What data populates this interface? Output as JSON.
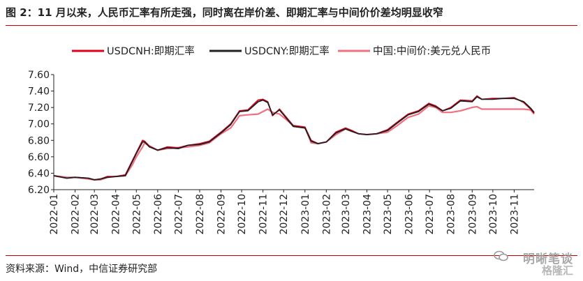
{
  "figure": {
    "title": "图 2：11 月以来，人民币汇率有所走强，同时离在岸价差、即期汇率与中间价价差均明显收窄",
    "source": "资料来源：Wind，中信证券研究部",
    "watermark_line1": "明晰笔谈",
    "watermark_line2": "格隆汇"
  },
  "colors": {
    "cnh": "#e0001b",
    "cny": "#231f20",
    "mid": "#f07080",
    "rule": "#c00000"
  },
  "chart_data": {
    "type": "line",
    "title": "",
    "xlabel": "",
    "ylabel": "",
    "ylim": [
      6.2,
      7.6
    ],
    "ytick_labels": [
      "6.20",
      "6.40",
      "6.60",
      "6.80",
      "7.00",
      "7.20",
      "7.40",
      "7.60"
    ],
    "x_range": [
      "2022-01-01",
      "2023-11-30"
    ],
    "xtick_labels": [
      "2022-01",
      "2022-02",
      "2022-03",
      "2022-04",
      "2022-05",
      "2022-06",
      "2022-07",
      "2022-08",
      "2022-09",
      "2022-10",
      "2022-11",
      "2022-12",
      "2023-01",
      "2023-02",
      "2023-03",
      "2023-04",
      "2023-05",
      "2023-06",
      "2023-07",
      "2023-08",
      "2023-09",
      "2023-10",
      "2023-11"
    ],
    "legend_position": "top",
    "grid": false,
    "series": [
      {
        "name": "USDCNH:即期汇率",
        "x": [
          "2022-01-01",
          "2022-01-20",
          "2022-02-01",
          "2022-02-20",
          "2022-03-01",
          "2022-03-10",
          "2022-03-20",
          "2022-04-01",
          "2022-04-15",
          "2022-04-25",
          "2022-05-01",
          "2022-05-10",
          "2022-05-13",
          "2022-05-20",
          "2022-06-01",
          "2022-06-15",
          "2022-07-01",
          "2022-07-15",
          "2022-08-01",
          "2022-08-15",
          "2022-09-01",
          "2022-09-15",
          "2022-09-28",
          "2022-10-10",
          "2022-10-25",
          "2022-11-01",
          "2022-11-08",
          "2022-11-15",
          "2022-11-25",
          "2022-12-01",
          "2022-12-15",
          "2023-01-01",
          "2023-01-10",
          "2023-01-20",
          "2023-02-01",
          "2023-02-15",
          "2023-03-01",
          "2023-03-10",
          "2023-03-20",
          "2023-04-01",
          "2023-04-15",
          "2023-05-01",
          "2023-05-15",
          "2023-05-31",
          "2023-06-15",
          "2023-06-30",
          "2023-07-10",
          "2023-07-20",
          "2023-08-01",
          "2023-08-15",
          "2023-09-01",
          "2023-09-08",
          "2023-09-15",
          "2023-10-01",
          "2023-10-15",
          "2023-11-01",
          "2023-11-15",
          "2023-11-25",
          "2023-11-30"
        ],
        "values": [
          6.37,
          6.34,
          6.35,
          6.34,
          6.32,
          6.33,
          6.36,
          6.36,
          6.38,
          6.55,
          6.65,
          6.8,
          6.79,
          6.73,
          6.68,
          6.72,
          6.71,
          6.74,
          6.76,
          6.79,
          6.9,
          7.0,
          7.16,
          7.17,
          7.29,
          7.3,
          7.27,
          7.1,
          7.18,
          7.12,
          6.98,
          6.96,
          6.8,
          6.76,
          6.78,
          6.9,
          6.95,
          6.92,
          6.88,
          6.87,
          6.88,
          6.93,
          7.02,
          7.12,
          7.16,
          7.25,
          7.22,
          7.16,
          7.2,
          7.29,
          7.28,
          7.34,
          7.3,
          7.31,
          7.31,
          7.32,
          7.26,
          7.18,
          7.13
        ]
      },
      {
        "name": "USDCNY:即期汇率",
        "x": [
          "2022-01-01",
          "2022-01-20",
          "2022-02-01",
          "2022-02-20",
          "2022-03-01",
          "2022-03-10",
          "2022-03-20",
          "2022-04-01",
          "2022-04-15",
          "2022-04-25",
          "2022-05-01",
          "2022-05-10",
          "2022-05-13",
          "2022-05-20",
          "2022-06-01",
          "2022-06-15",
          "2022-07-01",
          "2022-07-15",
          "2022-08-01",
          "2022-08-15",
          "2022-09-01",
          "2022-09-15",
          "2022-09-28",
          "2022-10-10",
          "2022-10-25",
          "2022-11-01",
          "2022-11-08",
          "2022-11-15",
          "2022-11-25",
          "2022-12-01",
          "2022-12-15",
          "2023-01-01",
          "2023-01-10",
          "2023-01-20",
          "2023-02-01",
          "2023-02-15",
          "2023-03-01",
          "2023-03-10",
          "2023-03-20",
          "2023-04-01",
          "2023-04-15",
          "2023-05-01",
          "2023-05-15",
          "2023-05-31",
          "2023-06-15",
          "2023-06-30",
          "2023-07-10",
          "2023-07-20",
          "2023-08-01",
          "2023-08-15",
          "2023-09-01",
          "2023-09-08",
          "2023-09-15",
          "2023-10-01",
          "2023-10-15",
          "2023-11-01",
          "2023-11-15",
          "2023-11-25",
          "2023-11-30"
        ],
        "values": [
          6.37,
          6.34,
          6.35,
          6.34,
          6.32,
          6.33,
          6.35,
          6.36,
          6.37,
          6.54,
          6.64,
          6.78,
          6.78,
          6.72,
          6.68,
          6.71,
          6.7,
          6.74,
          6.75,
          6.78,
          6.89,
          6.99,
          7.15,
          7.16,
          7.27,
          7.29,
          7.26,
          7.11,
          7.17,
          7.11,
          6.97,
          6.95,
          6.79,
          6.76,
          6.78,
          6.89,
          6.94,
          6.91,
          6.88,
          6.87,
          6.88,
          6.92,
          7.01,
          7.11,
          7.15,
          7.24,
          7.21,
          7.16,
          7.19,
          7.28,
          7.27,
          7.33,
          7.3,
          7.3,
          7.31,
          7.31,
          7.27,
          7.19,
          7.14
        ]
      },
      {
        "name": "中国:中间价:美元兑人民币",
        "x": [
          "2022-01-01",
          "2022-01-20",
          "2022-02-01",
          "2022-02-20",
          "2022-03-01",
          "2022-03-10",
          "2022-03-20",
          "2022-04-01",
          "2022-04-15",
          "2022-04-25",
          "2022-05-01",
          "2022-05-10",
          "2022-05-13",
          "2022-05-20",
          "2022-06-01",
          "2022-06-15",
          "2022-07-01",
          "2022-07-15",
          "2022-08-01",
          "2022-08-15",
          "2022-09-01",
          "2022-09-15",
          "2022-09-28",
          "2022-10-10",
          "2022-10-25",
          "2022-11-01",
          "2022-11-08",
          "2022-11-15",
          "2022-11-25",
          "2022-12-01",
          "2022-12-15",
          "2023-01-01",
          "2023-01-10",
          "2023-01-20",
          "2023-02-01",
          "2023-02-15",
          "2023-03-01",
          "2023-03-10",
          "2023-03-20",
          "2023-04-01",
          "2023-04-15",
          "2023-05-01",
          "2023-05-15",
          "2023-05-31",
          "2023-06-15",
          "2023-06-30",
          "2023-07-10",
          "2023-07-20",
          "2023-08-01",
          "2023-08-15",
          "2023-09-01",
          "2023-09-08",
          "2023-09-15",
          "2023-10-01",
          "2023-10-15",
          "2023-11-01",
          "2023-11-15",
          "2023-11-25",
          "2023-11-30"
        ],
        "values": [
          6.37,
          6.35,
          6.35,
          6.33,
          6.32,
          6.32,
          6.35,
          6.36,
          6.37,
          6.5,
          6.6,
          6.72,
          6.77,
          6.73,
          6.68,
          6.7,
          6.71,
          6.72,
          6.74,
          6.77,
          6.88,
          6.95,
          7.1,
          7.11,
          7.12,
          7.15,
          7.18,
          7.14,
          7.12,
          7.08,
          6.98,
          6.96,
          6.77,
          6.76,
          6.78,
          6.87,
          6.94,
          6.91,
          6.88,
          6.87,
          6.88,
          6.9,
          6.98,
          7.08,
          7.12,
          7.22,
          7.2,
          7.14,
          7.14,
          7.16,
          7.2,
          7.21,
          7.18,
          7.18,
          7.18,
          7.18,
          7.18,
          7.17,
          7.12
        ]
      }
    ]
  }
}
